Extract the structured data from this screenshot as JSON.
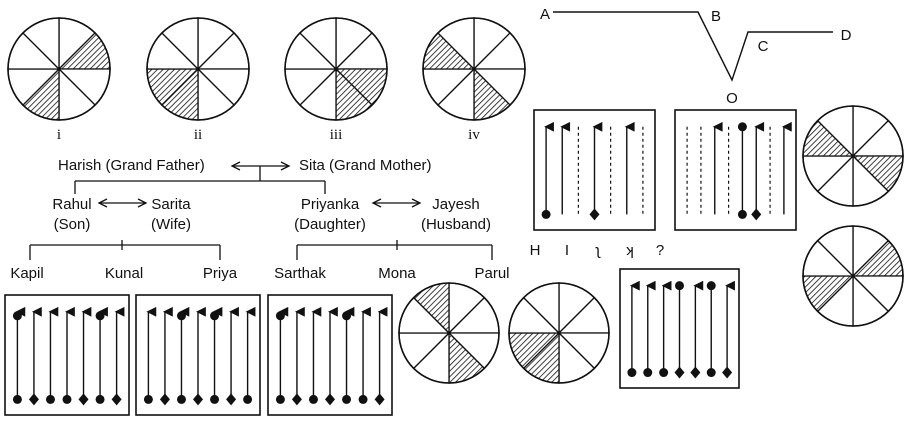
{
  "roman_labels": [
    "i",
    "ii",
    "iii",
    "iv"
  ],
  "family": {
    "grandfather": "Harish (Grand Father)",
    "grandmother": "Sita (Grand Mother)",
    "son_name": "Rahul",
    "son_role": "(Son)",
    "wife_name": "Sarita",
    "wife_role": "(Wife)",
    "daughter_name": "Priyanka",
    "daughter_role": "(Daughter)",
    "husband_name": "Jayesh",
    "husband_role": "(Husband)",
    "grandchildren_left": [
      "Kapil",
      "Kunal",
      "Priya"
    ],
    "grandchildren_right": [
      "Sarthak",
      "Mona",
      "Parul"
    ]
  },
  "path_labels": {
    "a": "A",
    "b": "B",
    "c": "C",
    "d": "D",
    "o": "O"
  },
  "letter_series": [
    "H",
    "I",
    "ʅ",
    "ʞ",
    "?"
  ],
  "circles": [
    {
      "id": "i",
      "shaded": [
        1,
        4
      ]
    },
    {
      "id": "ii",
      "shaded": [
        4,
        5
      ]
    },
    {
      "id": "iii",
      "shaded": [
        2,
        3
      ]
    },
    {
      "id": "iv",
      "shaded": [
        6,
        3
      ]
    },
    {
      "id": "answer-top",
      "shaded": [
        6,
        2
      ]
    },
    {
      "id": "answer-bottom",
      "shaded": [
        1,
        5
      ]
    },
    {
      "id": "option-a",
      "shaded": [
        7,
        3
      ]
    },
    {
      "id": "option-b",
      "shaded": [
        4,
        5
      ]
    }
  ],
  "arrow_boxes": [
    {
      "id": "question-1",
      "lines": [
        "solid-up-dot",
        "solid-up",
        "dotted",
        "solid-up-dot-diamond",
        "dotted",
        "solid-up",
        "dotted"
      ]
    },
    {
      "id": "question-2",
      "lines": [
        "dotted",
        "dotted",
        "solid-up",
        "dotted",
        "solid-dot-dot",
        "solid-up-diamond",
        "dotted",
        "solid-up"
      ]
    },
    {
      "id": "option-1",
      "lines": [
        "dot-up-dot",
        "up-diamond",
        "up-dot",
        "up-dot",
        "up-diamond",
        "dot-up-dot",
        "up-diamond"
      ]
    },
    {
      "id": "option-2",
      "lines": [
        "up-dot",
        "up-diamond",
        "dot-up-dot",
        "up-diamond",
        "dot-up-dot",
        "up-diamond",
        "up-dot"
      ]
    },
    {
      "id": "option-3",
      "lines": [
        "dot-up-dot",
        "up-diamond",
        "up-dot",
        "up-diamond",
        "dot-up-dot",
        "up-dot",
        "up-diamond"
      ]
    },
    {
      "id": "answer-box",
      "lines": [
        "up-dot",
        "up-dot",
        "up-dot",
        "dot-diamond",
        "up-diamond",
        "dot-dot",
        "up-diamond"
      ]
    }
  ],
  "colors": {
    "ink": "#111111",
    "hatch": "#111111",
    "background": "#ffffff"
  }
}
